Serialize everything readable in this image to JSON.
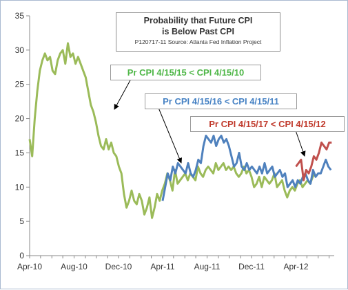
{
  "chart_data": {
    "type": "line",
    "title_lines": [
      "Probability that Future CPI",
      "is Below Past CPI"
    ],
    "subtitle": "P120717-11 Source: Atlanta Fed Inflation Project",
    "xlabel": "",
    "ylabel": "",
    "ylim": [
      0,
      35
    ],
    "y_ticks": [
      0,
      5,
      10,
      15,
      20,
      25,
      30,
      35
    ],
    "x_tick_labels": [
      "Apr-10",
      "Aug-10",
      "Dec-10",
      "Apr-11",
      "Aug-11",
      "Dec-11",
      "Apr-12"
    ],
    "xlim": [
      "2010-04-01",
      "2012-07-15"
    ],
    "grid": false,
    "legend": "none",
    "series": [
      {
        "color": "#9bbb59",
        "annotation": "Pr CPI 4/15/15  < CPI 4/15/10",
        "annotation_color": "#4fb748",
        "x": [
          "2010-04-01",
          "2010-04-08",
          "2010-04-15",
          "2010-04-22",
          "2010-04-29",
          "2010-05-06",
          "2010-05-13",
          "2010-05-20",
          "2010-05-27",
          "2010-06-03",
          "2010-06-10",
          "2010-06-17",
          "2010-06-24",
          "2010-07-01",
          "2010-07-08",
          "2010-07-15",
          "2010-07-22",
          "2010-07-29",
          "2010-08-05",
          "2010-08-12",
          "2010-08-19",
          "2010-08-26",
          "2010-09-02",
          "2010-09-09",
          "2010-09-16",
          "2010-09-23",
          "2010-09-30",
          "2010-10-07",
          "2010-10-14",
          "2010-10-21",
          "2010-10-28",
          "2010-11-04",
          "2010-11-11",
          "2010-11-18",
          "2010-11-25",
          "2010-12-02",
          "2010-12-09",
          "2010-12-16",
          "2010-12-23",
          "2010-12-30",
          "2011-01-06",
          "2011-01-13",
          "2011-01-20",
          "2011-01-27",
          "2011-02-03",
          "2011-02-10",
          "2011-02-17",
          "2011-02-24",
          "2011-03-03",
          "2011-03-10",
          "2011-03-17",
          "2011-03-24",
          "2011-03-31",
          "2011-04-07",
          "2011-04-14",
          "2011-04-21",
          "2011-04-28",
          "2011-05-05",
          "2011-05-12",
          "2011-05-19",
          "2011-05-26",
          "2011-06-02",
          "2011-06-09",
          "2011-06-16",
          "2011-06-23",
          "2011-06-30",
          "2011-07-07",
          "2011-07-14",
          "2011-07-21",
          "2011-07-28",
          "2011-08-04",
          "2011-08-11",
          "2011-08-18",
          "2011-08-25",
          "2011-09-01",
          "2011-09-08",
          "2011-09-15",
          "2011-09-22",
          "2011-09-29",
          "2011-10-06",
          "2011-10-13",
          "2011-10-20",
          "2011-10-27",
          "2011-11-03",
          "2011-11-10",
          "2011-11-17",
          "2011-11-24",
          "2011-12-01",
          "2011-12-08",
          "2011-12-15",
          "2011-12-22",
          "2011-12-29",
          "2012-01-05",
          "2012-01-12",
          "2012-01-19",
          "2012-01-26",
          "2012-02-02",
          "2012-02-09",
          "2012-02-16",
          "2012-02-23",
          "2012-03-01",
          "2012-03-08",
          "2012-03-15",
          "2012-03-22",
          "2012-03-29",
          "2012-04-05",
          "2012-04-12",
          "2012-04-19",
          "2012-04-26",
          "2012-05-03",
          "2012-05-10",
          "2012-05-17",
          "2012-05-24"
        ],
        "y": [
          17,
          14.5,
          20,
          24,
          27,
          28.5,
          29.5,
          28.5,
          29,
          27,
          26.5,
          28.5,
          29.5,
          30,
          28,
          31,
          29,
          29.5,
          28,
          29,
          28,
          27,
          26,
          24,
          22,
          21,
          19.5,
          17.5,
          16,
          15.5,
          17,
          15.5,
          16.5,
          15,
          14.5,
          13,
          12,
          9,
          7,
          8,
          9.5,
          8,
          7.5,
          9,
          8,
          6,
          7,
          8.5,
          5.5,
          7,
          9,
          8,
          9.5,
          10.5,
          12,
          11,
          9.5,
          12.5,
          10.5,
          11,
          11.5,
          12,
          11,
          12,
          11.5,
          11,
          13,
          12,
          11.5,
          12.5,
          13,
          12.5,
          12,
          13.5,
          12.5,
          13,
          13.5,
          12.5,
          13,
          12.5,
          13,
          12,
          11.5,
          12,
          13,
          12,
          12.5,
          11.5,
          10,
          10.5,
          11.5,
          10,
          11.5,
          11,
          10.5,
          11,
          12,
          10,
          10.5,
          11,
          9.5,
          8.5,
          9.5,
          10,
          9.5,
          10.5,
          11,
          10,
          10.5,
          11,
          10.5,
          11.5,
          12
        ]
      },
      {
        "color": "#4f81bd",
        "annotation": "Pr CPI 4/15/16  < CPI 4/15/11",
        "annotation_color": "#4682c4",
        "x": [
          "2011-04-01",
          "2011-04-08",
          "2011-04-15",
          "2011-04-22",
          "2011-04-29",
          "2011-05-06",
          "2011-05-13",
          "2011-05-20",
          "2011-05-27",
          "2011-06-03",
          "2011-06-10",
          "2011-06-17",
          "2011-06-24",
          "2011-07-01",
          "2011-07-08",
          "2011-07-15",
          "2011-07-22",
          "2011-07-29",
          "2011-08-05",
          "2011-08-12",
          "2011-08-19",
          "2011-08-26",
          "2011-09-02",
          "2011-09-09",
          "2011-09-16",
          "2011-09-23",
          "2011-09-30",
          "2011-10-07",
          "2011-10-14",
          "2011-10-21",
          "2011-10-28",
          "2011-11-04",
          "2011-11-11",
          "2011-11-18",
          "2011-11-25",
          "2011-12-02",
          "2011-12-09",
          "2011-12-16",
          "2011-12-23",
          "2011-12-30",
          "2012-01-06",
          "2012-01-13",
          "2012-01-20",
          "2012-01-27",
          "2012-02-03",
          "2012-02-10",
          "2012-02-17",
          "2012-02-24",
          "2012-03-02",
          "2012-03-09",
          "2012-03-16",
          "2012-03-23",
          "2012-03-30",
          "2012-04-06",
          "2012-04-13",
          "2012-04-20",
          "2012-04-27",
          "2012-05-04",
          "2012-05-11",
          "2012-05-18",
          "2012-05-25",
          "2012-06-01",
          "2012-06-08",
          "2012-06-15",
          "2012-06-22",
          "2012-06-29",
          "2012-07-06"
        ],
        "y": [
          8,
          10,
          12,
          11,
          13,
          12,
          13.5,
          13,
          12.5,
          12,
          13.5,
          12,
          11.5,
          12.5,
          14,
          13.5,
          16,
          17.5,
          17,
          16.5,
          17.5,
          16,
          17,
          17.5,
          16.5,
          17,
          16,
          14.5,
          13,
          13.5,
          15,
          13,
          12.5,
          13.5,
          12.5,
          13,
          12.5,
          12,
          13,
          12,
          13.5,
          12,
          12.5,
          13,
          11.5,
          12,
          12.5,
          11.5,
          12,
          10,
          10.5,
          11,
          10,
          11,
          10.5,
          11.5,
          12,
          11,
          10.5,
          12.5,
          11.5,
          12,
          12,
          13,
          14,
          13,
          12.5
        ]
      },
      {
        "color": "#c0504d",
        "annotation": "Pr CPI 4/15/17  < CPI 4/15/12",
        "annotation_color": "#c0392b",
        "x": [
          "2012-04-01",
          "2012-04-08",
          "2012-04-15",
          "2012-04-22",
          "2012-04-29",
          "2012-05-06",
          "2012-05-13",
          "2012-05-20",
          "2012-05-27",
          "2012-06-03",
          "2012-06-10",
          "2012-06-17",
          "2012-06-24",
          "2012-07-01",
          "2012-07-08"
        ],
        "y": [
          13,
          13.5,
          14,
          11,
          12.5,
          12,
          13,
          14.5,
          14,
          15,
          16.5,
          16,
          15.5,
          16.5,
          16.5
        ]
      }
    ]
  }
}
